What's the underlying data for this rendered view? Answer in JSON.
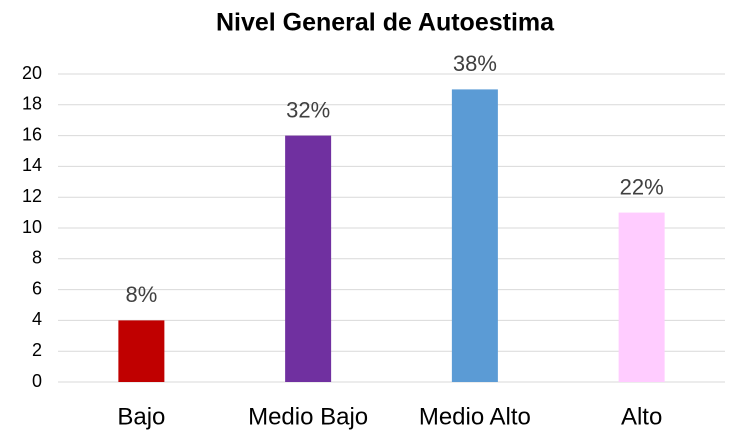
{
  "chart_data": {
    "type": "bar",
    "title": "Nivel General de Autoestima",
    "categories": [
      "Bajo",
      "Medio Bajo",
      "Medio Alto",
      "Alto"
    ],
    "values": [
      4,
      16,
      19,
      11
    ],
    "value_labels": [
      "8%",
      "32%",
      "38%",
      "22%"
    ],
    "colors": [
      "#c00000",
      "#7030a0",
      "#5b9bd5",
      "#ffccff"
    ],
    "ylim": [
      0,
      20
    ],
    "yticks": [
      0,
      2,
      4,
      6,
      8,
      10,
      12,
      14,
      16,
      18,
      20
    ],
    "grid": true
  }
}
